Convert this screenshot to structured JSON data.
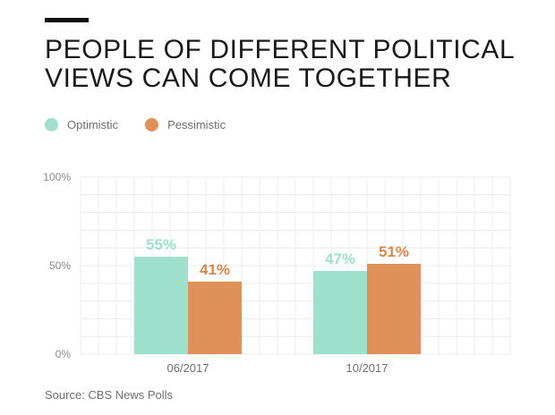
{
  "header": {
    "title_line1": "PEOPLE OF DIFFERENT POLITICAL",
    "title_line2": "VIEWS CAN COME TOGETHER"
  },
  "legend": [
    {
      "label": "Optimistic",
      "color": "#9fe0cc"
    },
    {
      "label": "Pessimistic",
      "color": "#e0915a"
    }
  ],
  "source": "Source: CBS News Polls",
  "chart_data": {
    "type": "bar",
    "categories": [
      "06/2017",
      "10/2017"
    ],
    "series": [
      {
        "name": "Optimistic",
        "values": [
          55,
          47
        ],
        "color": "#9fe0cc",
        "label_color": "#9fe0cc"
      },
      {
        "name": "Pessimistic",
        "values": [
          41,
          51
        ],
        "color": "#e0915a",
        "label_color": "#d9874f"
      }
    ],
    "value_labels": [
      [
        "55%",
        "47%"
      ],
      [
        "41%",
        "51%"
      ]
    ],
    "ylim": [
      0,
      100
    ],
    "yticks": [
      0,
      50,
      100
    ],
    "ytick_labels": [
      "0%",
      "50%",
      "100%"
    ],
    "grid": true,
    "legend_position": "top-left"
  }
}
